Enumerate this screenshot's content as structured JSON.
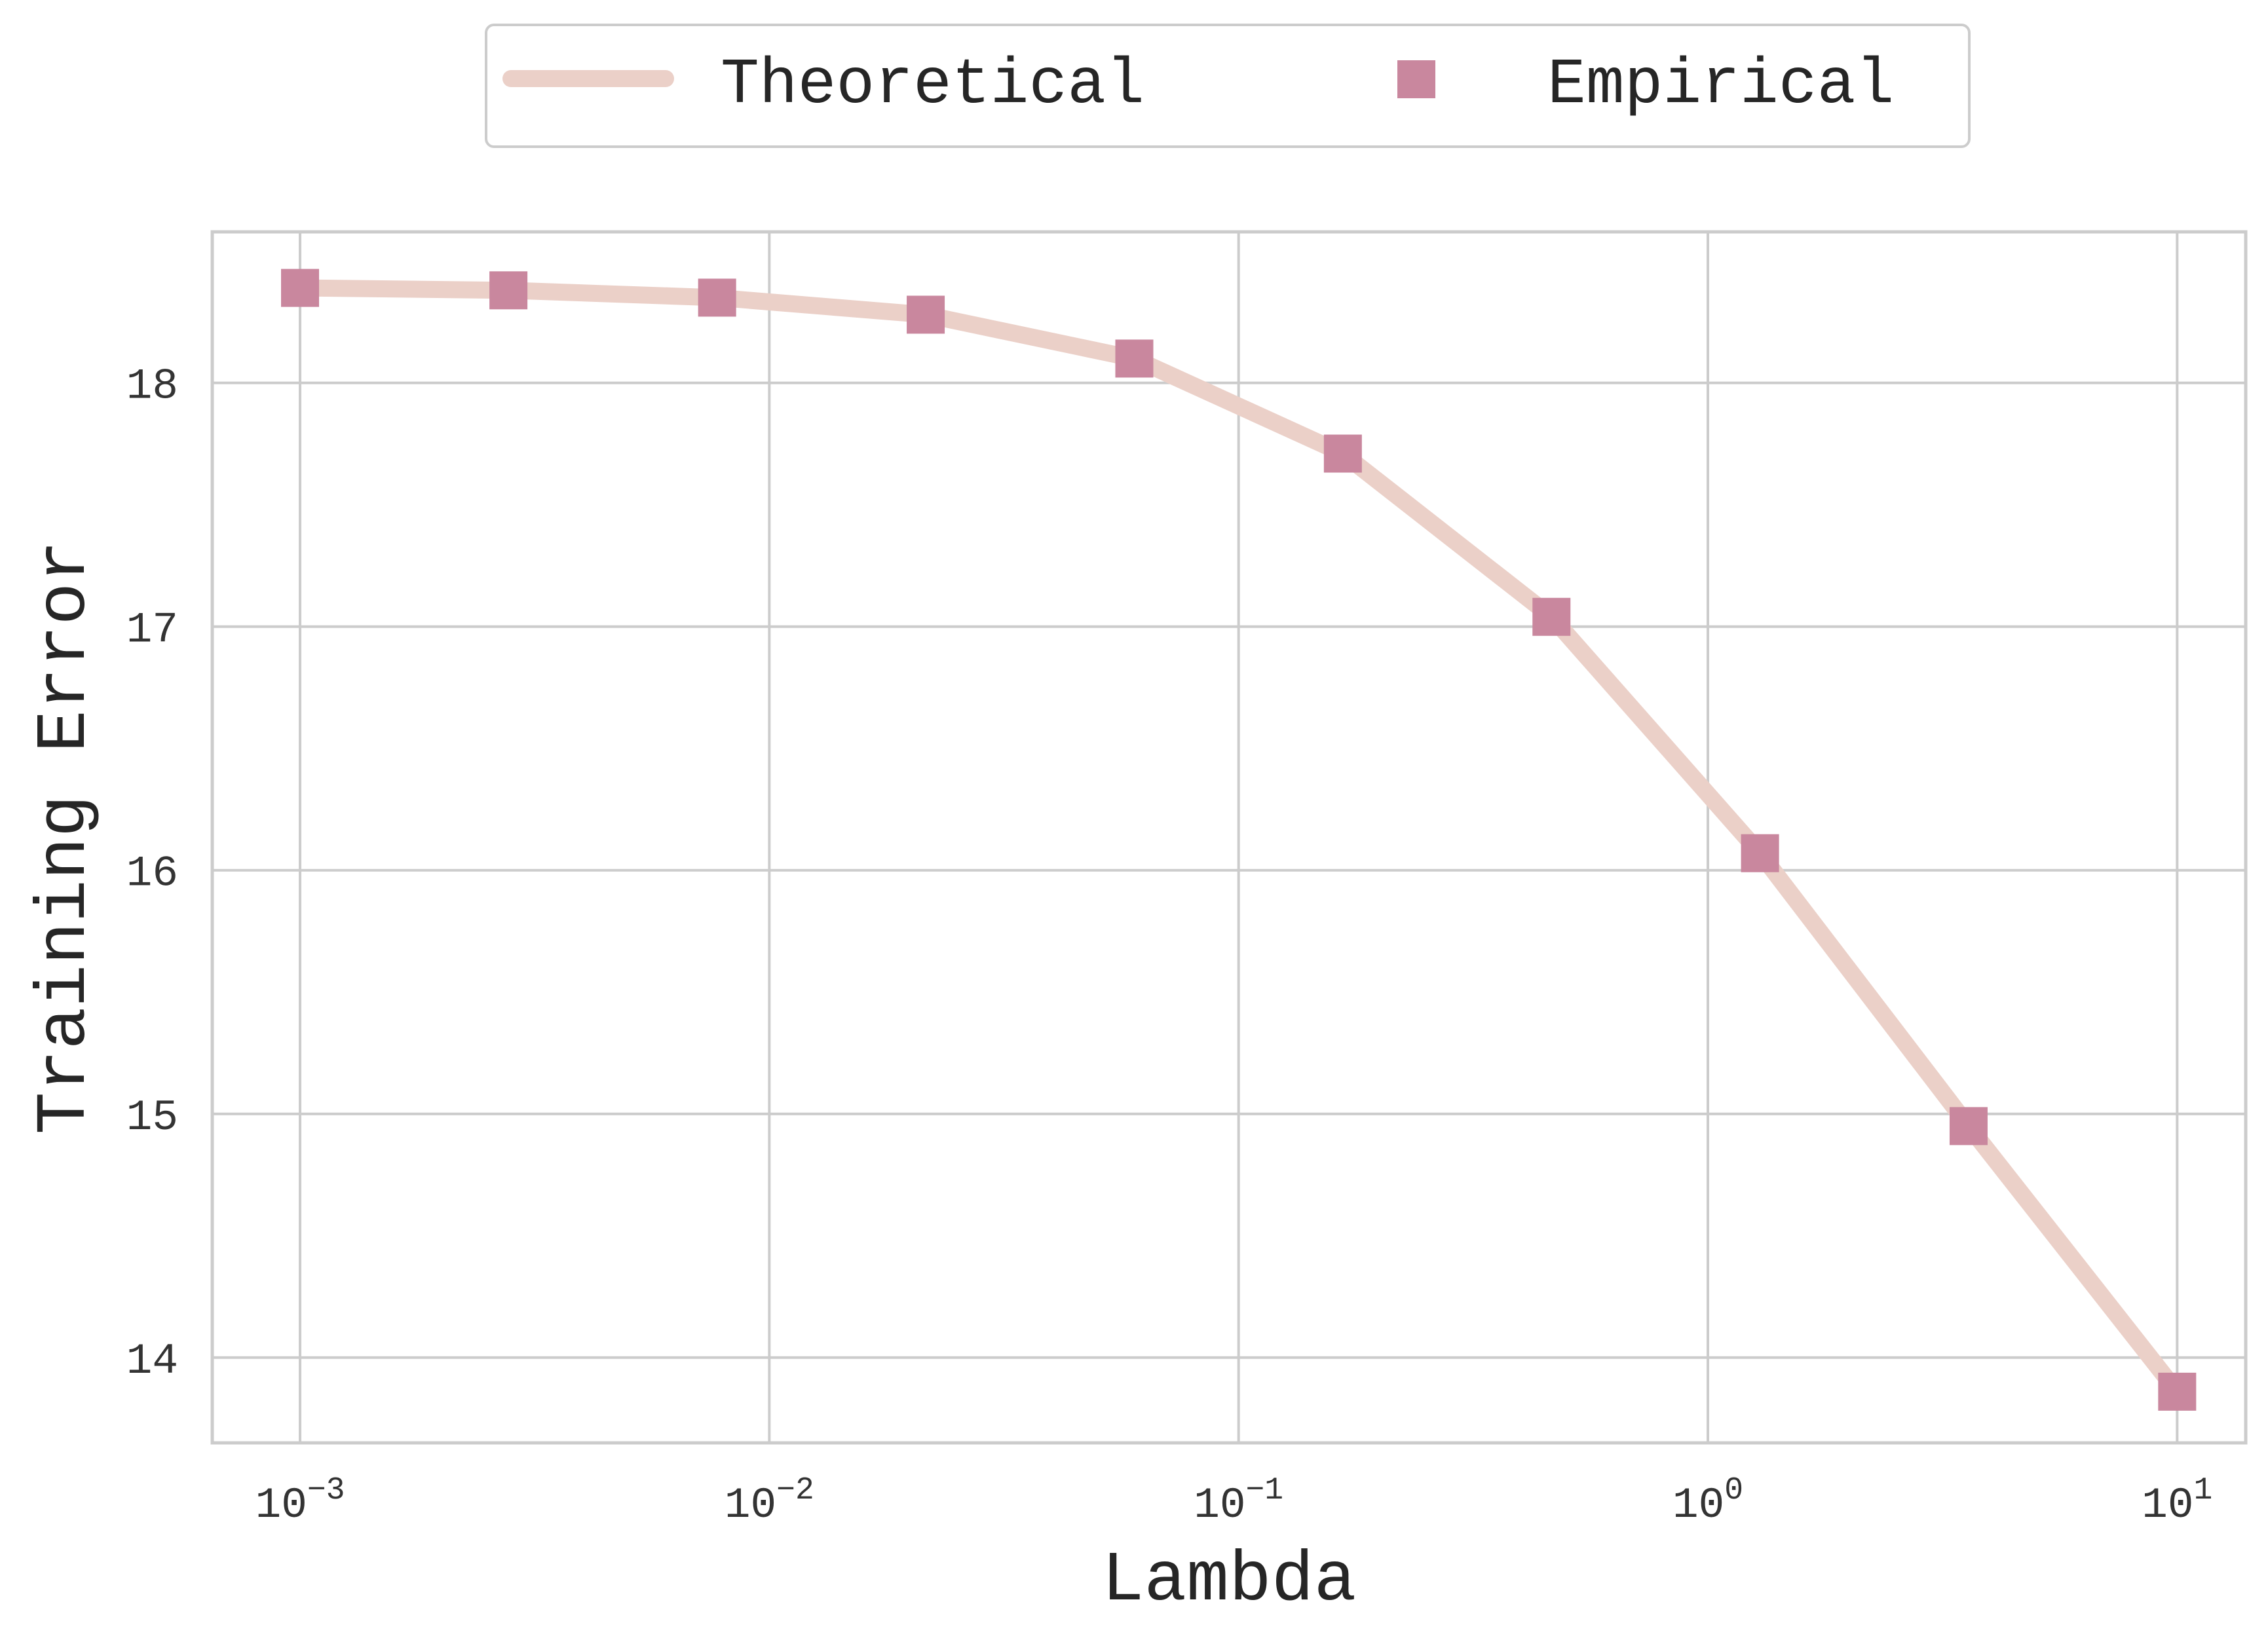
{
  "chart_data": {
    "type": "line",
    "xscale": "log",
    "xlabel": "Lambda",
    "ylabel": "Training Error",
    "xlim": [
      0.00065,
      14
    ],
    "ylim": [
      13.65,
      18.62
    ],
    "x_ticks": [
      0.001,
      0.01,
      0.1,
      1,
      10
    ],
    "x_tick_labels": [
      {
        "base": "10",
        "exp": "−3"
      },
      {
        "base": "10",
        "exp": "−2"
      },
      {
        "base": "10",
        "exp": "−1"
      },
      {
        "base": "10",
        "exp": "0"
      },
      {
        "base": "10",
        "exp": "1"
      }
    ],
    "y_ticks": [
      14,
      15,
      16,
      17,
      18
    ],
    "y_tick_labels": [
      "14",
      "15",
      "16",
      "17",
      "18"
    ],
    "grid": true,
    "legend_position": "top-center",
    "series": [
      {
        "name": "Theoretical",
        "kind": "line",
        "color": "#ebd0c8",
        "x": [
          0.001,
          0.00278,
          0.00774,
          0.02154,
          0.05995,
          0.1668,
          0.4642,
          1.2915,
          3.5938,
          10
        ],
        "values": [
          18.39,
          18.38,
          18.35,
          18.28,
          18.1,
          17.71,
          17.04,
          16.07,
          14.95,
          13.86
        ]
      },
      {
        "name": "Empirical",
        "kind": "scatter",
        "marker": "square",
        "color": "#c9879e",
        "x": [
          0.001,
          0.00278,
          0.00774,
          0.02154,
          0.05995,
          0.1668,
          0.4642,
          1.2915,
          3.5938,
          10
        ],
        "values": [
          18.39,
          18.38,
          18.35,
          18.28,
          18.1,
          17.71,
          17.04,
          16.07,
          14.95,
          13.86
        ]
      }
    ]
  }
}
